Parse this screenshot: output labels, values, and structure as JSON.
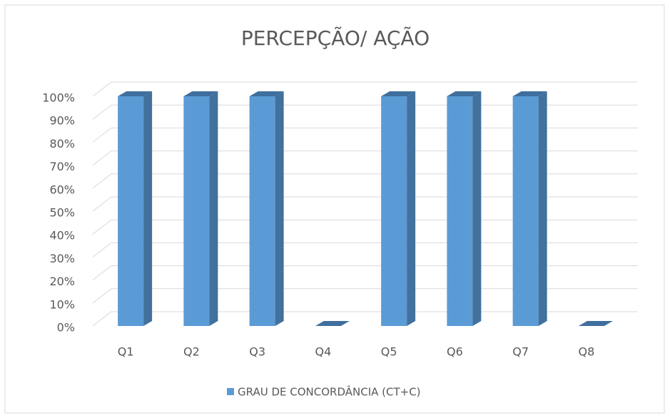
{
  "chart_data": {
    "type": "bar3d",
    "title": "PERCEPÇÃO/ AÇÃO",
    "categories": [
      "Q1",
      "Q2",
      "Q3",
      "Q4",
      "Q5",
      "Q6",
      "Q7",
      "Q8"
    ],
    "series": [
      {
        "name": "GRAU DE CONCORDÂNCIA (CT+C)",
        "color": "#5b9bd5",
        "values": [
          100,
          100,
          100,
          0,
          100,
          100,
          100,
          0
        ]
      }
    ],
    "ylim": [
      0,
      100
    ],
    "yticks": [
      {
        "value": 0,
        "label": "0%"
      },
      {
        "value": 10,
        "label": "10%"
      },
      {
        "value": 20,
        "label": "20%"
      },
      {
        "value": 30,
        "label": "30%"
      },
      {
        "value": 40,
        "label": "40%"
      },
      {
        "value": 50,
        "label": "50%"
      },
      {
        "value": 60,
        "label": "60%"
      },
      {
        "value": 70,
        "label": "70%"
      },
      {
        "value": 80,
        "label": "80%"
      },
      {
        "value": 90,
        "label": "90%"
      },
      {
        "value": 100,
        "label": "100%"
      }
    ],
    "grid": true,
    "legend": "bottom"
  }
}
